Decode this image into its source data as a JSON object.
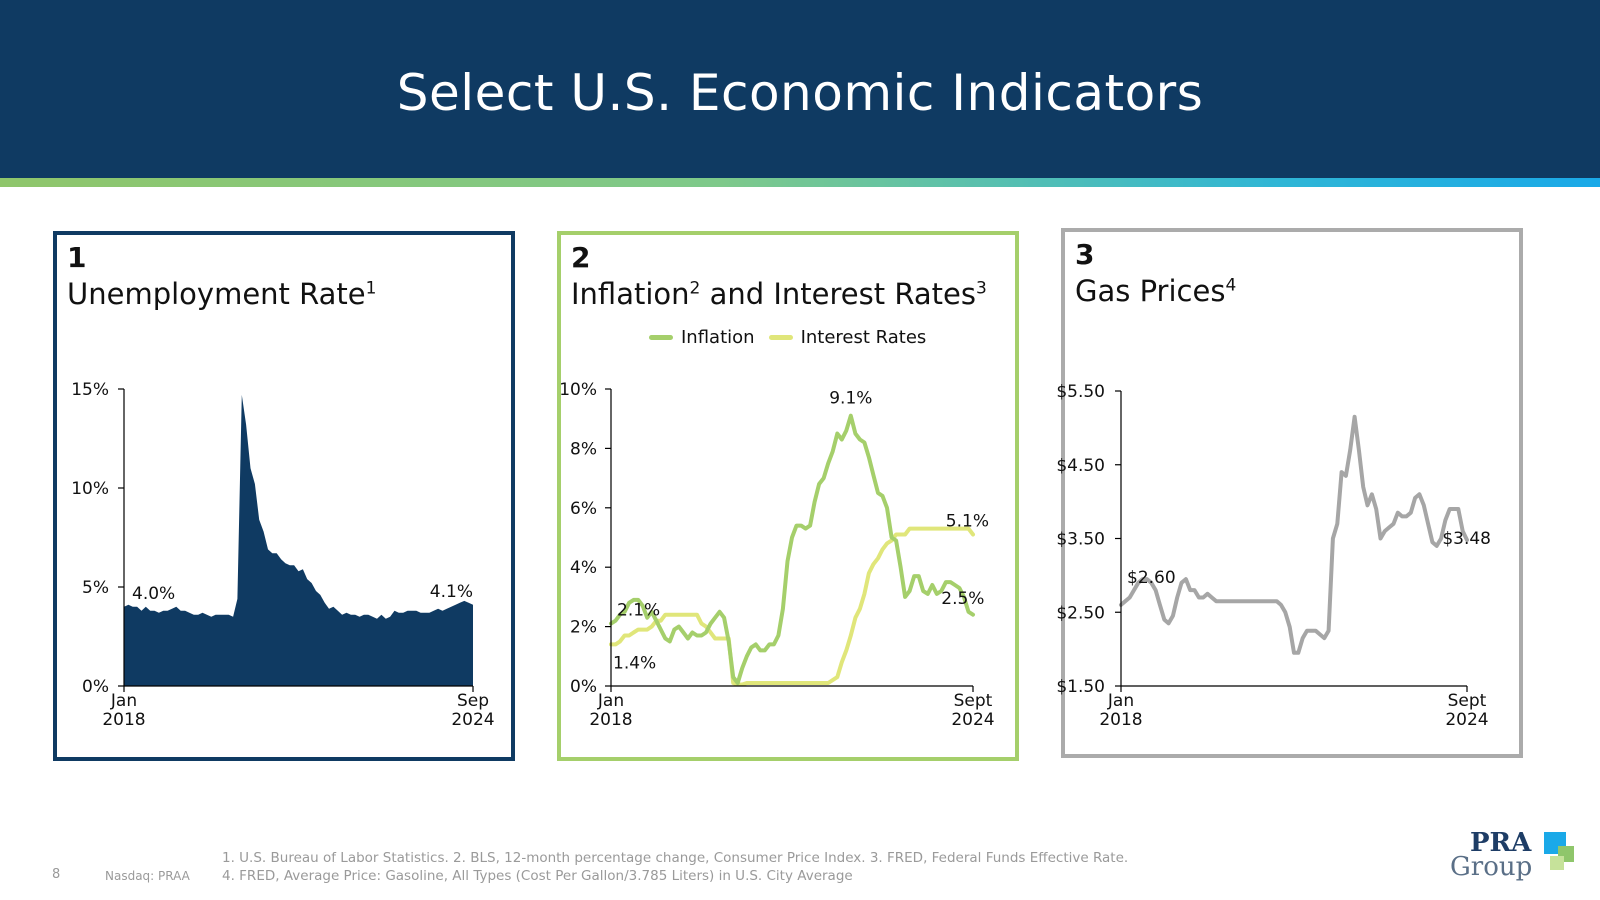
{
  "header": {
    "title": "Select U.S. Economic Indicators"
  },
  "panels": [
    {
      "number": "1",
      "title": "Unemployment Rate",
      "title_sup": "1",
      "border_color": "#0f3a62"
    },
    {
      "number": "2",
      "title": "Inflation",
      "title_sup": "2",
      "title_mid": " and Interest Rates",
      "title_sup2": "3",
      "border_color": "#a5cf6b"
    },
    {
      "number": "3",
      "title": "Gas Prices",
      "title_sup": "4",
      "border_color": "#ababab"
    }
  ],
  "legend": {
    "inflation": "Inflation",
    "interest": "Interest Rates"
  },
  "footer": {
    "page": "8",
    "ticker": "Nasdaq: PRAA",
    "note1": "1. U.S. Bureau of Labor Statistics. 2. BLS, 12-month percentage change, Consumer Price Index. 3. FRED, Federal Funds Effective Rate.",
    "note2": "4. FRED, Average Price: Gasoline, All Types (Cost Per Gallon/3.785 Liters) in U.S. City Average"
  },
  "logo": {
    "line1": "PRA",
    "line2": "Group"
  },
  "chart_data": [
    {
      "type": "area",
      "title": "Unemployment Rate",
      "color": "#0f3a62",
      "ylim": [
        0,
        15
      ],
      "yticks": [
        "0%",
        "5%",
        "10%",
        "15%"
      ],
      "ytick_values": [
        0,
        5,
        10,
        15
      ],
      "x_start_label": [
        "Jan",
        "2018"
      ],
      "x_end_label": [
        "Sep",
        "2024"
      ],
      "x": [
        0,
        1,
        2,
        3,
        4,
        5,
        6,
        7,
        8,
        9,
        10,
        11,
        12,
        13,
        14,
        15,
        16,
        17,
        18,
        19,
        20,
        21,
        22,
        23,
        24,
        25,
        26,
        27,
        28,
        29,
        30,
        31,
        32,
        33,
        34,
        35,
        36,
        37,
        38,
        39,
        40,
        41,
        42,
        43,
        44,
        45,
        46,
        47,
        48,
        49,
        50,
        51,
        52,
        53,
        54,
        55,
        56,
        57,
        58,
        59,
        60,
        61,
        62,
        63,
        64,
        65,
        66,
        67,
        68,
        69,
        70,
        71,
        72,
        73,
        74,
        75,
        76,
        77,
        78,
        79,
        80
      ],
      "values": [
        4.0,
        4.1,
        4.0,
        4.0,
        3.8,
        4.0,
        3.8,
        3.8,
        3.7,
        3.8,
        3.8,
        3.9,
        4.0,
        3.8,
        3.8,
        3.7,
        3.6,
        3.6,
        3.7,
        3.6,
        3.5,
        3.6,
        3.6,
        3.6,
        3.6,
        3.5,
        4.4,
        14.7,
        13.2,
        11.0,
        10.2,
        8.4,
        7.8,
        6.9,
        6.7,
        6.7,
        6.4,
        6.2,
        6.1,
        6.1,
        5.8,
        5.9,
        5.4,
        5.2,
        4.8,
        4.6,
        4.2,
        3.9,
        4.0,
        3.8,
        3.6,
        3.7,
        3.6,
        3.6,
        3.5,
        3.6,
        3.6,
        3.5,
        3.4,
        3.6,
        3.4,
        3.5,
        3.8,
        3.7,
        3.7,
        3.8,
        3.8,
        3.8,
        3.7,
        3.7,
        3.7,
        3.8,
        3.9,
        3.8,
        3.9,
        4.0,
        4.1,
        4.2,
        4.3,
        4.2,
        4.1
      ],
      "annotations": [
        {
          "text": "4.0%",
          "x": 0,
          "y": 4.0
        },
        {
          "text": "4.1%",
          "x": 80,
          "y": 4.1
        }
      ]
    },
    {
      "type": "line",
      "title": "Inflation and Interest Rates",
      "ylim": [
        0,
        10
      ],
      "yticks": [
        "0%",
        "2%",
        "4%",
        "6%",
        "8%",
        "10%"
      ],
      "ytick_values": [
        0,
        2,
        4,
        6,
        8,
        10
      ],
      "x_start_label": [
        "Jan",
        "2018"
      ],
      "x_end_label": [
        "Sept",
        "2024"
      ],
      "x": [
        0,
        1,
        2,
        3,
        4,
        5,
        6,
        7,
        8,
        9,
        10,
        11,
        12,
        13,
        14,
        15,
        16,
        17,
        18,
        19,
        20,
        21,
        22,
        23,
        24,
        25,
        26,
        27,
        28,
        29,
        30,
        31,
        32,
        33,
        34,
        35,
        36,
        37,
        38,
        39,
        40,
        41,
        42,
        43,
        44,
        45,
        46,
        47,
        48,
        49,
        50,
        51,
        52,
        53,
        54,
        55,
        56,
        57,
        58,
        59,
        60,
        61,
        62,
        63,
        64,
        65,
        66,
        67,
        68,
        69,
        70,
        71,
        72,
        73,
        74,
        75,
        76,
        77,
        78,
        79,
        80
      ],
      "series": [
        {
          "name": "Inflation",
          "color": "#a5cf6b",
          "values": [
            2.1,
            2.2,
            2.4,
            2.5,
            2.8,
            2.9,
            2.9,
            2.7,
            2.3,
            2.5,
            2.2,
            1.9,
            1.6,
            1.5,
            1.9,
            2.0,
            1.8,
            1.6,
            1.8,
            1.7,
            1.7,
            1.8,
            2.1,
            2.3,
            2.5,
            2.3,
            1.5,
            0.3,
            0.1,
            0.6,
            1.0,
            1.3,
            1.4,
            1.2,
            1.2,
            1.4,
            1.4,
            1.7,
            2.6,
            4.2,
            5.0,
            5.4,
            5.4,
            5.3,
            5.4,
            6.2,
            6.8,
            7.0,
            7.5,
            7.9,
            8.5,
            8.3,
            8.6,
            9.1,
            8.5,
            8.3,
            8.2,
            7.7,
            7.1,
            6.5,
            6.4,
            6.0,
            5.0,
            4.9,
            4.0,
            3.0,
            3.2,
            3.7,
            3.7,
            3.2,
            3.1,
            3.4,
            3.1,
            3.2,
            3.5,
            3.5,
            3.4,
            3.3,
            3.0,
            2.5,
            2.4
          ]
        },
        {
          "name": "Interest Rates",
          "color": "#e0e67a",
          "values": [
            1.4,
            1.4,
            1.5,
            1.7,
            1.7,
            1.8,
            1.9,
            1.9,
            1.9,
            2.0,
            2.2,
            2.2,
            2.4,
            2.4,
            2.4,
            2.4,
            2.4,
            2.4,
            2.4,
            2.4,
            2.1,
            2.0,
            1.8,
            1.6,
            1.6,
            1.6,
            1.6,
            0.1,
            0.05,
            0.05,
            0.1,
            0.1,
            0.1,
            0.1,
            0.1,
            0.1,
            0.1,
            0.1,
            0.1,
            0.1,
            0.1,
            0.1,
            0.1,
            0.1,
            0.1,
            0.1,
            0.1,
            0.1,
            0.1,
            0.2,
            0.3,
            0.8,
            1.2,
            1.7,
            2.3,
            2.6,
            3.1,
            3.8,
            4.1,
            4.3,
            4.6,
            4.8,
            4.9,
            5.1,
            5.1,
            5.1,
            5.3,
            5.3,
            5.3,
            5.3,
            5.3,
            5.3,
            5.3,
            5.3,
            5.3,
            5.3,
            5.3,
            5.3,
            5.3,
            5.3,
            5.1
          ]
        }
      ],
      "annotations": [
        {
          "text": "2.1%",
          "x": 0,
          "y": 2.1
        },
        {
          "text": "1.4%",
          "x": 0,
          "y": 1.4
        },
        {
          "text": "9.1%",
          "x": 53,
          "y": 9.1
        },
        {
          "text": "5.1%",
          "x": 80,
          "y": 5.1
        },
        {
          "text": "2.5%",
          "x": 79,
          "y": 2.5
        }
      ]
    },
    {
      "type": "line",
      "title": "Gas Prices",
      "color": "#a6a6a6",
      "ylim": [
        1.5,
        5.5
      ],
      "yticks": [
        "$1.50",
        "$2.50",
        "$3.50",
        "$4.50",
        "$5.50"
      ],
      "ytick_values": [
        1.5,
        2.5,
        3.5,
        4.5,
        5.5
      ],
      "x_start_label": [
        "Jan",
        "2018"
      ],
      "x_end_label": [
        "Sept",
        "2024"
      ],
      "x": [
        0,
        1,
        2,
        3,
        4,
        5,
        6,
        7,
        8,
        9,
        10,
        11,
        12,
        13,
        14,
        15,
        16,
        17,
        18,
        19,
        20,
        21,
        22,
        23,
        24,
        25,
        26,
        27,
        28,
        29,
        30,
        31,
        32,
        33,
        34,
        35,
        36,
        37,
        38,
        39,
        40,
        41,
        42,
        43,
        44,
        45,
        46,
        47,
        48,
        49,
        50,
        51,
        52,
        53,
        54,
        55,
        56,
        57,
        58,
        59,
        60,
        61,
        62,
        63,
        64,
        65,
        66,
        67,
        68,
        69,
        70,
        71,
        72,
        73,
        74,
        75,
        76,
        77,
        78,
        79,
        80
      ],
      "values": [
        2.6,
        2.65,
        2.7,
        2.8,
        2.9,
        2.95,
        2.95,
        2.9,
        2.8,
        2.6,
        2.4,
        2.35,
        2.45,
        2.7,
        2.9,
        2.95,
        2.8,
        2.8,
        2.7,
        2.7,
        2.75,
        2.7,
        2.65,
        2.65,
        2.65,
        2.65,
        2.65,
        2.65,
        2.65,
        2.65,
        2.65,
        2.65,
        2.65,
        2.65,
        2.65,
        2.65,
        2.65,
        2.6,
        2.5,
        2.3,
        1.95,
        1.95,
        2.15,
        2.25,
        2.25,
        2.25,
        2.2,
        2.15,
        2.25,
        3.5,
        3.7,
        4.4,
        4.35,
        4.7,
        5.15,
        4.7,
        4.2,
        3.95,
        4.1,
        3.9,
        3.5,
        3.6,
        3.65,
        3.7,
        3.85,
        3.8,
        3.8,
        3.85,
        4.05,
        4.1,
        3.95,
        3.7,
        3.45,
        3.4,
        3.5,
        3.75,
        3.9,
        3.9,
        3.9,
        3.6,
        3.48
      ],
      "annotations": [
        {
          "text": "$2.60",
          "x": 0,
          "y": 2.6
        },
        {
          "text": "$3.48",
          "x": 80,
          "y": 3.48
        }
      ]
    }
  ]
}
